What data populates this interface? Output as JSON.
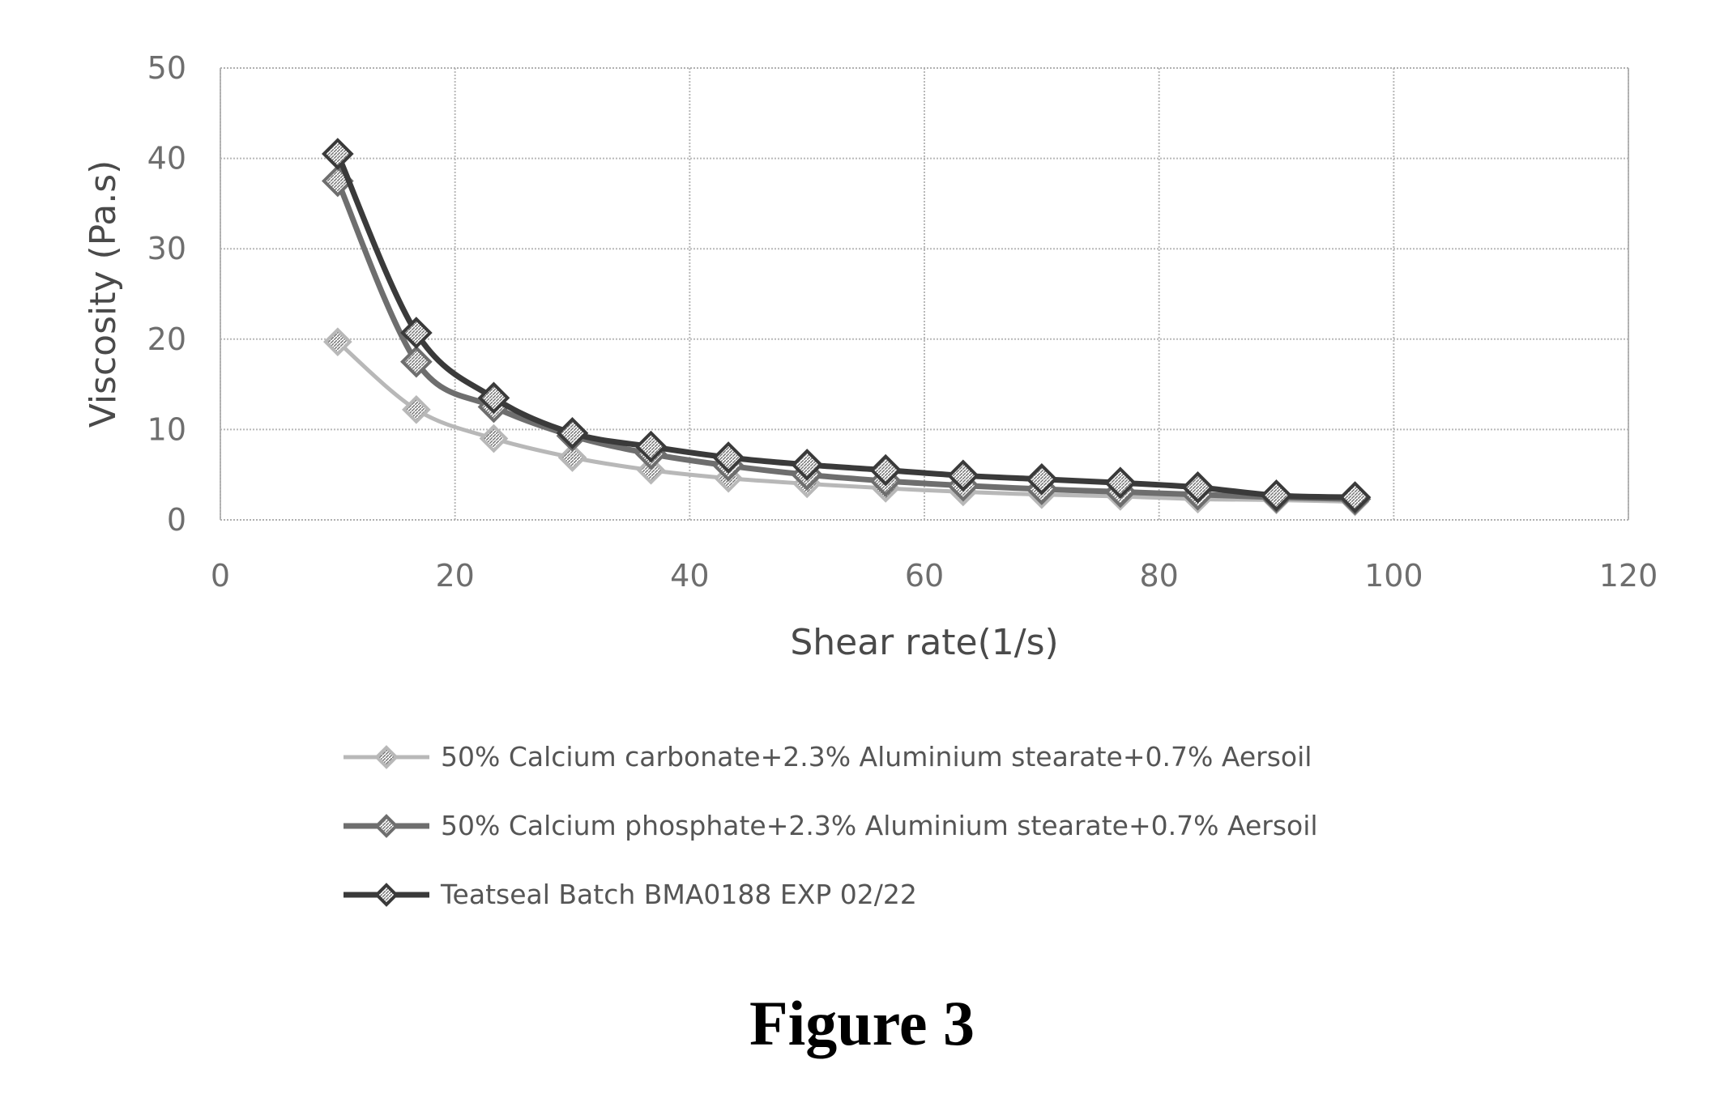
{
  "chart_data": {
    "type": "line",
    "xlabel": "Shear rate(1/s)",
    "ylabel": "Viscosity (Pa.s)",
    "xlim": [
      0,
      120
    ],
    "ylim": [
      0,
      50
    ],
    "xticks": [
      0,
      20,
      40,
      60,
      80,
      100,
      120
    ],
    "yticks": [
      0,
      10,
      20,
      30,
      40,
      50
    ],
    "grid": true,
    "legend_position": "bottom",
    "series": [
      {
        "name": "50% Calcium carbonate+2.3% Aluminium stearate+0.7% Aersoil",
        "color": "#b8b8b8",
        "x": [
          10,
          16.7,
          23.3,
          30,
          36.7,
          43.3,
          50,
          56.7,
          63.3,
          70,
          76.7,
          83.3,
          90,
          96.7
        ],
        "y": [
          19.7,
          12.2,
          9.0,
          6.9,
          5.5,
          4.6,
          4.0,
          3.5,
          3.1,
          2.8,
          2.6,
          2.3,
          2.2,
          2.0
        ]
      },
      {
        "name": "50% Calcium phosphate+2.3% Aluminium stearate+0.7% Aersoil",
        "color": "#6e6e6e",
        "x": [
          10,
          16.7,
          23.3,
          30,
          36.7,
          43.3,
          50,
          56.7,
          63.3,
          70,
          76.7,
          83.3,
          90,
          96.7
        ],
        "y": [
          37.5,
          17.5,
          12.5,
          9.3,
          7.3,
          6.0,
          5.0,
          4.3,
          3.8,
          3.4,
          3.1,
          2.8,
          2.5,
          2.3
        ]
      },
      {
        "name": "Teatseal Batch BMA0188 EXP 02/22",
        "color": "#3a3a3a",
        "x": [
          10,
          16.7,
          23.3,
          30,
          36.7,
          43.3,
          50,
          56.7,
          63.3,
          70,
          76.7,
          83.3,
          90,
          96.7
        ],
        "y": [
          40.5,
          20.7,
          13.5,
          9.6,
          8.1,
          6.9,
          6.1,
          5.5,
          4.9,
          4.5,
          4.1,
          3.6,
          2.7,
          2.5
        ]
      }
    ]
  },
  "figure": {
    "caption": "Figure 3"
  }
}
